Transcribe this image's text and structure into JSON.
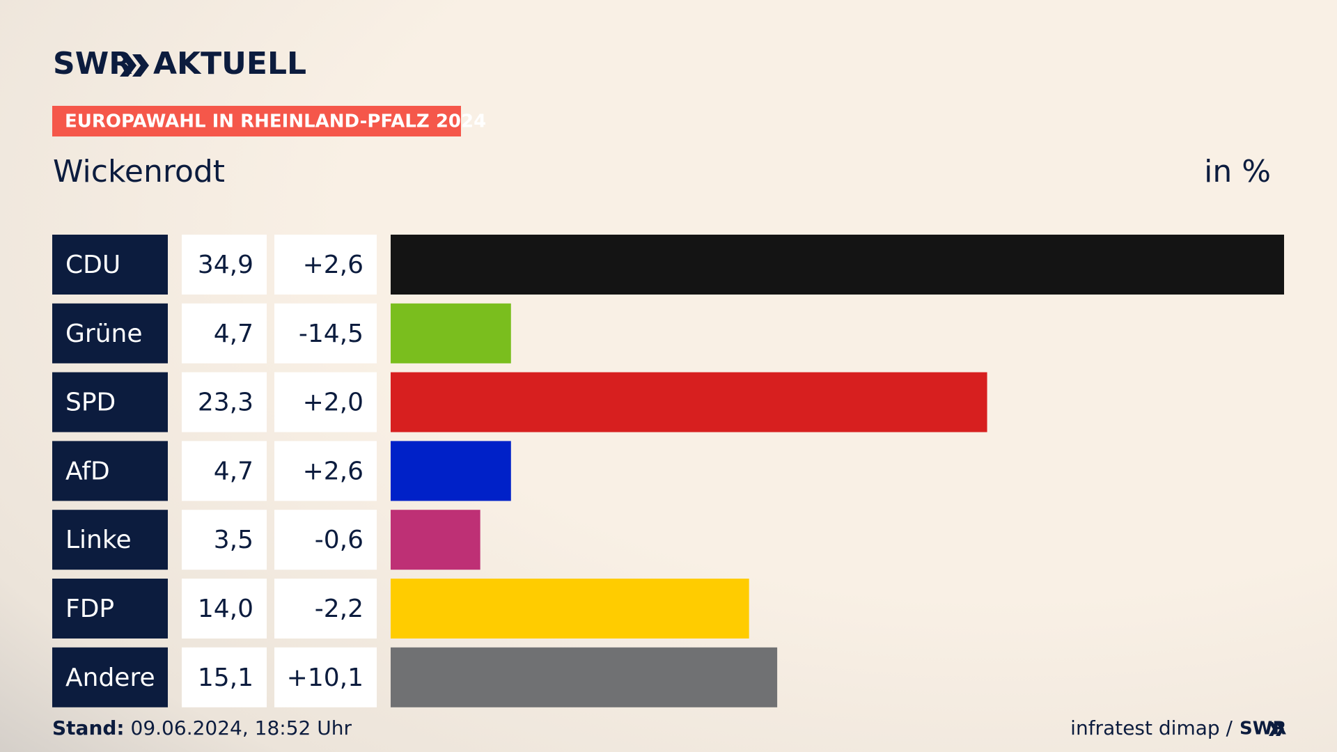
{
  "header": {
    "logo_left": "SWR",
    "logo_right": "AKTUELL",
    "banner": "EUROPAWAHL IN RHEINLAND-PFALZ 2024"
  },
  "chart_data": {
    "type": "bar",
    "title": "Wickenrodt",
    "unit": "in %",
    "categories": [
      "CDU",
      "Grüne",
      "SPD",
      "AfD",
      "Linke",
      "FDP",
      "Andere"
    ],
    "values": [
      34.9,
      4.7,
      23.3,
      4.7,
      3.5,
      14.0,
      15.1
    ],
    "value_labels": [
      "34,9",
      "4,7",
      "23,3",
      "4,7",
      "3,5",
      "14,0",
      "15,1"
    ],
    "changes": [
      2.6,
      -14.5,
      2.0,
      2.6,
      -0.6,
      -2.2,
      10.1
    ],
    "change_labels": [
      "+2,6",
      "-14,5",
      "+2,0",
      "+2,6",
      "-0,6",
      "-2,2",
      "+10,1"
    ],
    "colors": [
      "#141414",
      "#7abe1e",
      "#d71f1f",
      "#0021c8",
      "#be3075",
      "#ffcc00",
      "#707173"
    ]
  },
  "footer": {
    "stand_label": "Stand:",
    "stand_value": "09.06.2024, 18:52 Uhr",
    "source": "infratest dimap /",
    "source_logo": "SWR"
  }
}
